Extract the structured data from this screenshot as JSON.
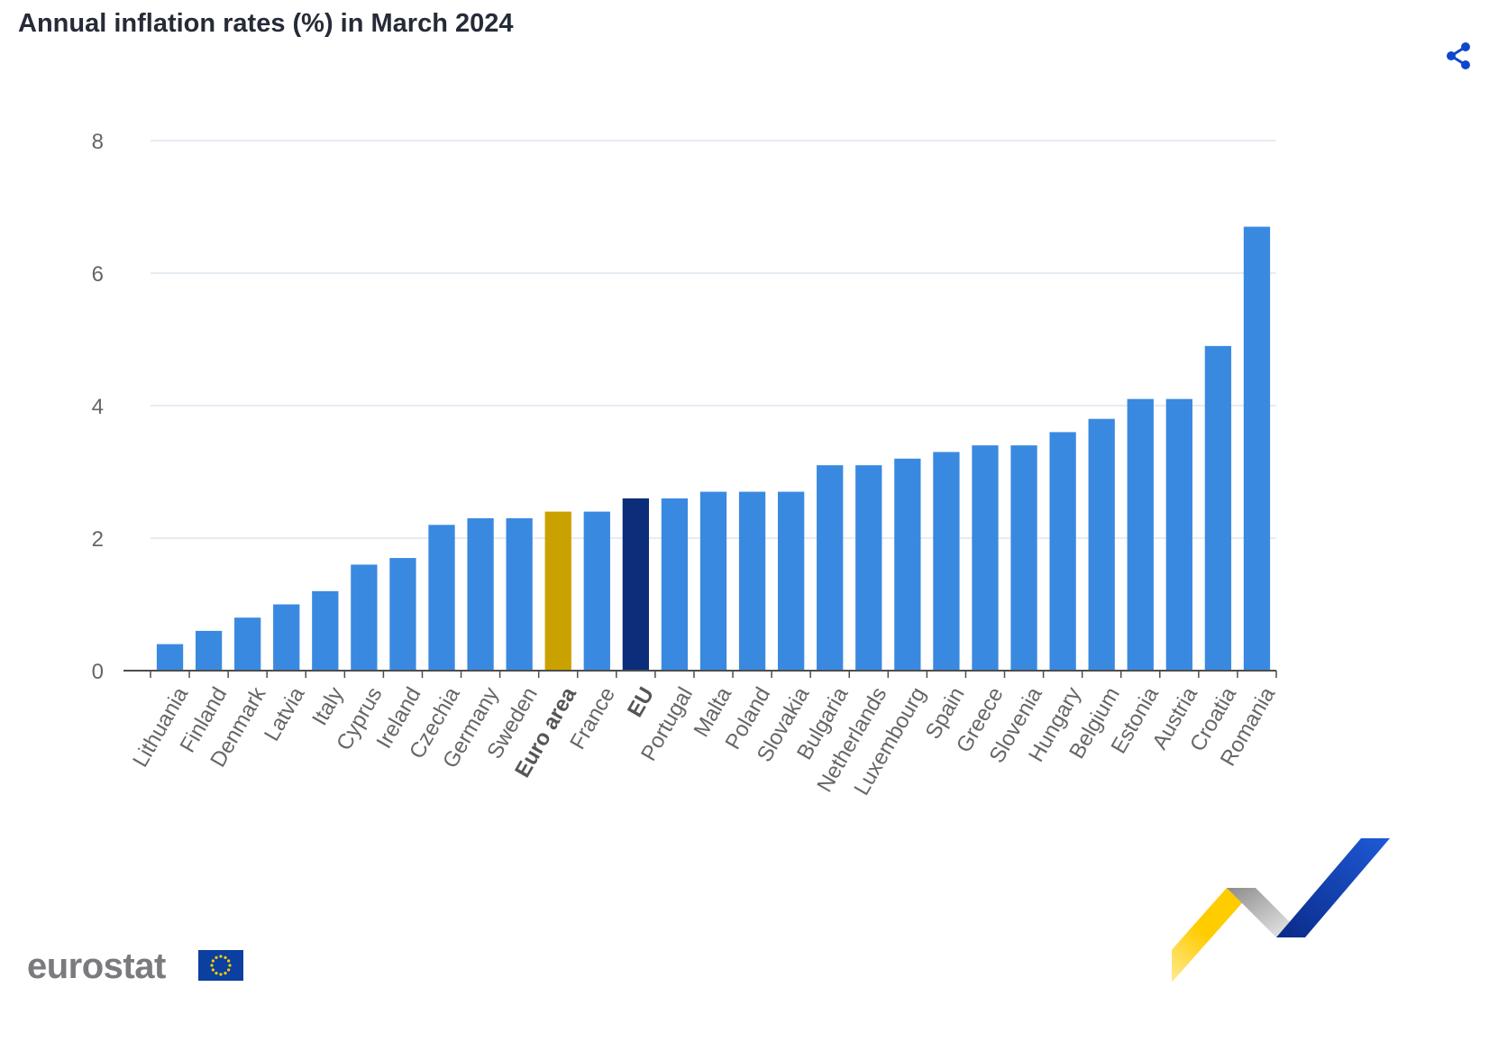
{
  "header": {
    "title": "Annual inflation rates (%) in March 2024"
  },
  "toolbar": {
    "share_icon": "share-icon"
  },
  "brand": {
    "logo_text": "eurostat",
    "flag_icon": "eu-flag-icon"
  },
  "colors": {
    "bar": "#3a89e0",
    "euro_area": "#c9a200",
    "eu": "#0b2d7a",
    "grid": "#dde6ef",
    "axis": "#4d4d4d",
    "tick_label": "#666666",
    "share": "#0e47cb"
  },
  "chart_data": {
    "type": "bar",
    "title": "Annual inflation rates (%) in March 2024",
    "xlabel": "",
    "ylabel": "",
    "ylim": [
      0,
      8
    ],
    "yticks": [
      0,
      2,
      4,
      6,
      8
    ],
    "grid": true,
    "categories": [
      "Lithuania",
      "Finland",
      "Denmark",
      "Latvia",
      "Italy",
      "Cyprus",
      "Ireland",
      "Czechia",
      "Germany",
      "Sweden",
      "Euro area",
      "France",
      "EU",
      "Portugal",
      "Malta",
      "Poland",
      "Slovakia",
      "Bulgaria",
      "Netherlands",
      "Luxembourg",
      "Spain",
      "Greece",
      "Slovenia",
      "Hungary",
      "Belgium",
      "Estonia",
      "Austria",
      "Croatia",
      "Romania"
    ],
    "values": [
      0.4,
      0.6,
      0.8,
      1.0,
      1.2,
      1.6,
      1.7,
      2.2,
      2.3,
      2.3,
      2.4,
      2.4,
      2.6,
      2.6,
      2.7,
      2.7,
      2.7,
      3.1,
      3.1,
      3.2,
      3.3,
      3.4,
      3.4,
      3.6,
      3.8,
      4.1,
      4.1,
      4.9,
      6.7
    ],
    "highlight": {
      "Euro area": "euro_area",
      "EU": "eu"
    },
    "bold_categories": [
      "Euro area",
      "EU"
    ]
  }
}
